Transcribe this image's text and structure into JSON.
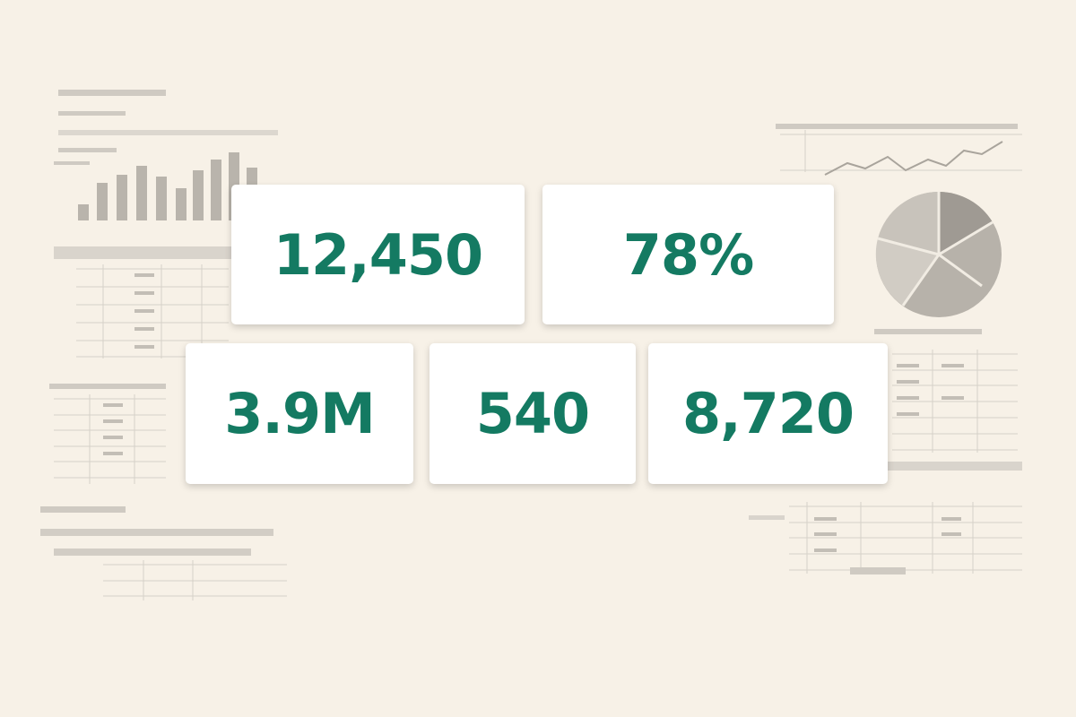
{
  "cards": [
    {
      "value": "12,450"
    },
    {
      "value": "78%"
    },
    {
      "value": "3.9M"
    },
    {
      "value": "540"
    },
    {
      "value": "8,720"
    }
  ]
}
